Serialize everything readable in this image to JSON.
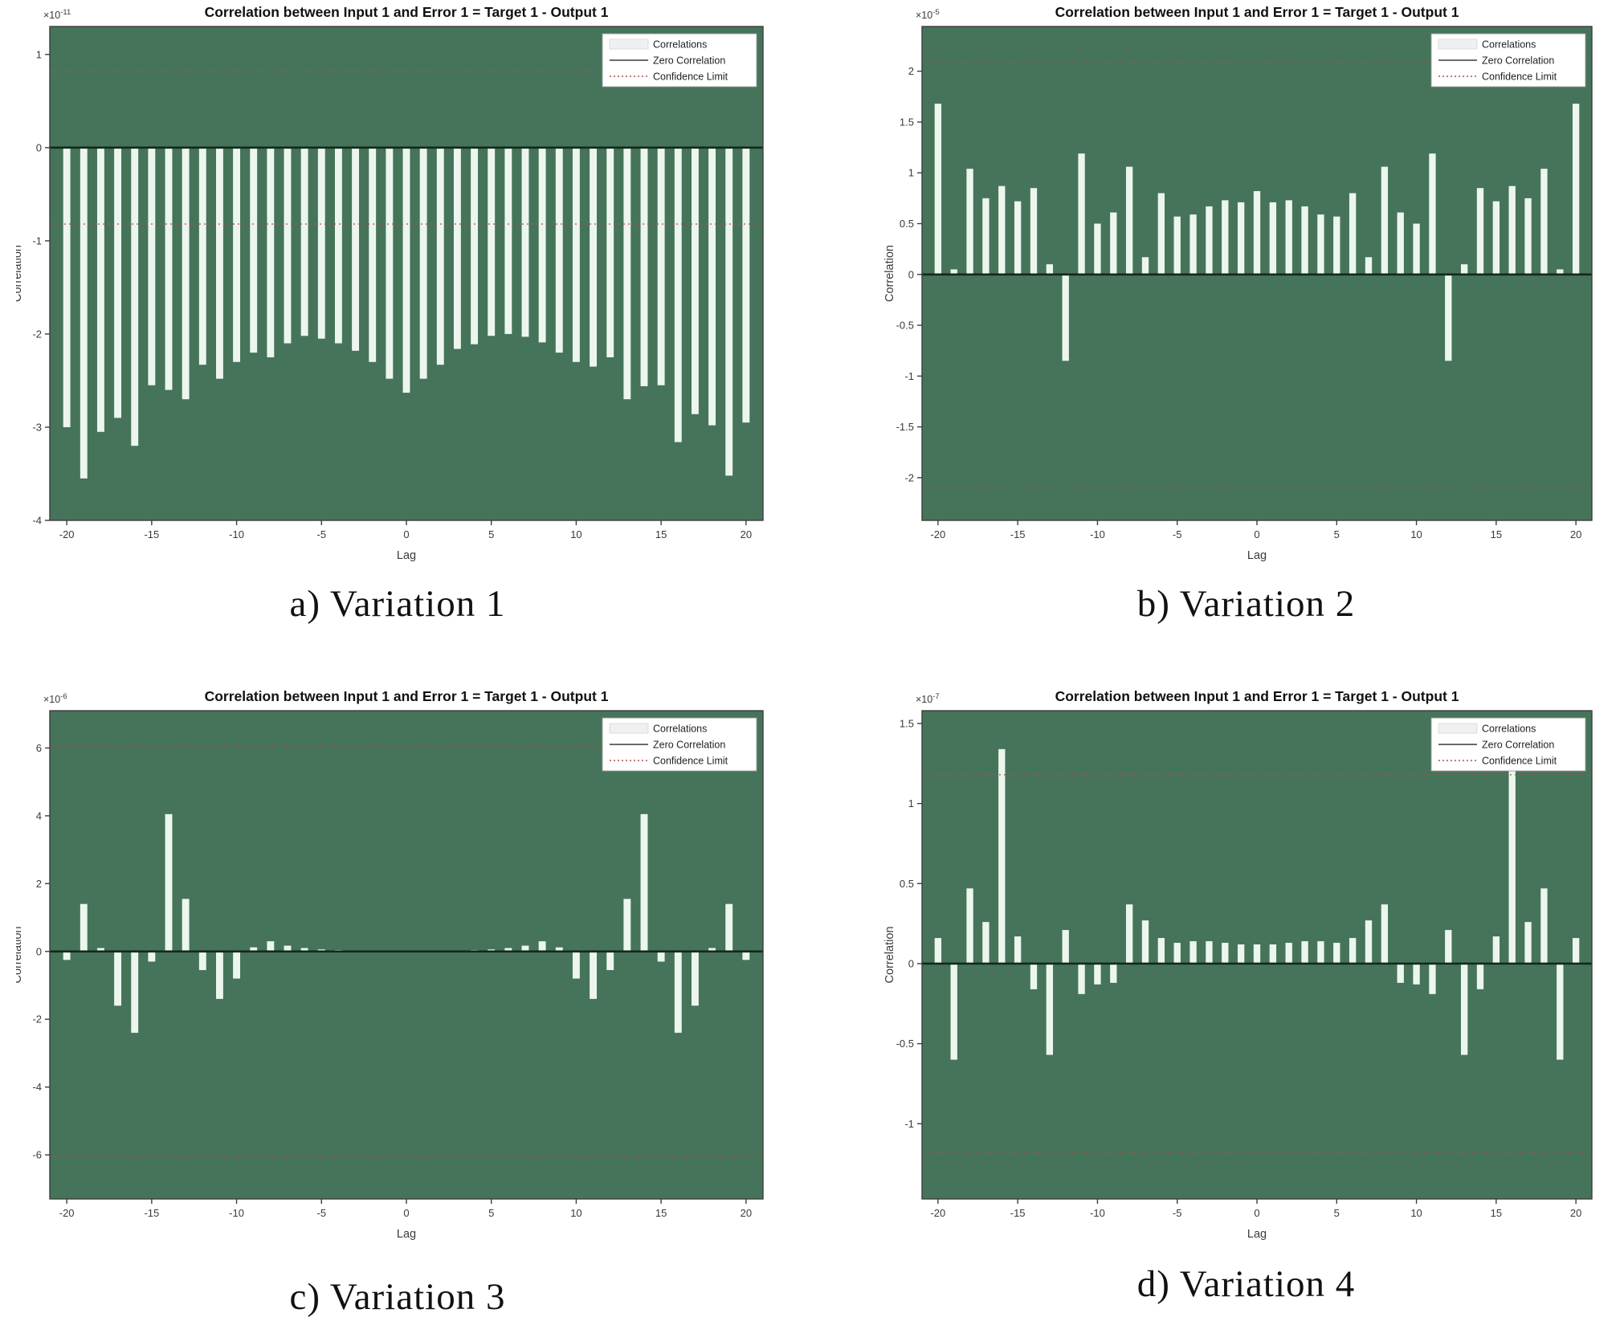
{
  "figures": [
    {
      "caption": "a) Variation 1"
    },
    {
      "caption": "b) Variation 2"
    },
    {
      "caption": "c) Variation 3"
    },
    {
      "caption": "d) Variation 4"
    }
  ],
  "colors": {
    "plot_background": "#45745a",
    "bar_fill": "#ecf6ef",
    "zero_line": "#14281c",
    "confidence_line": "#a8544b",
    "axis_box": "#3d3d3d",
    "tick_text": "#3a3a3a",
    "title_text": "#111111",
    "legend_bg": "#ffffff",
    "legend_border": "#999999",
    "legend_bar_swatch": "#f0f0f0",
    "legend_bar_swatch_border": "#d5d5d5",
    "page_background": "#ffffff"
  },
  "chart_data": [
    {
      "type": "bar",
      "title": "Correlation between Input 1 and Error 1 = Target 1 - Output 1",
      "xlabel": "Lag",
      "ylabel": "Correlation",
      "exponent_base": "×10",
      "exponent": "-11",
      "legend": [
        "Correlations",
        "Zero Correlation",
        "Confidence Limit"
      ],
      "legend_position": "top-right",
      "grid": false,
      "x": [
        -20,
        -19,
        -18,
        -17,
        -16,
        -15,
        -14,
        -13,
        -12,
        -11,
        -10,
        -9,
        -8,
        -7,
        -6,
        -5,
        -4,
        -3,
        -2,
        -1,
        0,
        1,
        2,
        3,
        4,
        5,
        6,
        7,
        8,
        9,
        10,
        11,
        12,
        13,
        14,
        15,
        16,
        17,
        18,
        19,
        20
      ],
      "values": [
        -3.0,
        -3.55,
        -3.05,
        -2.9,
        -3.2,
        -2.55,
        -2.6,
        -2.7,
        -2.33,
        -2.48,
        -2.3,
        -2.2,
        -2.25,
        -2.1,
        -2.02,
        -2.05,
        -2.1,
        -2.18,
        -2.3,
        -2.48,
        -2.63,
        -2.48,
        -2.33,
        -2.16,
        -2.11,
        -2.02,
        -2.0,
        -2.03,
        -2.09,
        -2.2,
        -2.3,
        -2.35,
        -2.25,
        -2.7,
        -2.56,
        -2.55,
        -3.16,
        -2.86,
        -2.98,
        -3.52,
        -2.95
      ],
      "confidence_limit": 0.82,
      "ylim": [
        -4.0,
        1.3
      ],
      "xlim": [
        -21,
        21
      ],
      "yticks": [
        1,
        0,
        -1,
        -2,
        -3,
        -4
      ],
      "xticks": [
        -20,
        -15,
        -10,
        -5,
        0,
        5,
        10,
        15,
        20
      ]
    },
    {
      "type": "bar",
      "title": "Correlation between Input 1 and Error 1 = Target 1 - Output 1",
      "xlabel": "Lag",
      "ylabel": "Correlation",
      "exponent_base": "×10",
      "exponent": "-5",
      "legend": [
        "Correlations",
        "Zero Correlation",
        "Confidence Limit"
      ],
      "legend_position": "top-right",
      "grid": false,
      "x": [
        -20,
        -19,
        -18,
        -17,
        -16,
        -15,
        -14,
        -13,
        -12,
        -11,
        -10,
        -9,
        -8,
        -7,
        -6,
        -5,
        -4,
        -3,
        -2,
        -1,
        0,
        1,
        2,
        3,
        4,
        5,
        6,
        7,
        8,
        9,
        10,
        11,
        12,
        13,
        14,
        15,
        16,
        17,
        18,
        19,
        20
      ],
      "values": [
        1.68,
        0.05,
        1.04,
        0.75,
        0.87,
        0.72,
        0.85,
        0.1,
        -0.85,
        1.19,
        0.5,
        0.61,
        1.06,
        0.17,
        0.8,
        0.57,
        0.59,
        0.67,
        0.73,
        0.71,
        0.82,
        0.71,
        0.73,
        0.67,
        0.59,
        0.57,
        0.8,
        0.17,
        1.06,
        0.61,
        0.5,
        1.19,
        -0.85,
        0.1,
        0.85,
        0.72,
        0.87,
        0.75,
        1.04,
        0.05,
        1.68
      ],
      "confidence_limit": 2.08,
      "ylim": [
        -2.42,
        2.44
      ],
      "xlim": [
        -21,
        21
      ],
      "yticks": [
        2,
        1.5,
        1,
        0.5,
        0,
        -0.5,
        -1,
        -1.5,
        -2
      ],
      "xticks": [
        -20,
        -15,
        -10,
        -5,
        0,
        5,
        10,
        15,
        20
      ]
    },
    {
      "type": "bar",
      "title": "Correlation between Input 1 and Error 1 = Target 1 - Output 1",
      "xlabel": "Lag",
      "ylabel": "Correlation",
      "exponent_base": "×10",
      "exponent": "-6",
      "legend": [
        "Correlations",
        "Zero Correlation",
        "Confidence Limit"
      ],
      "legend_position": "top-right",
      "grid": false,
      "x": [
        -20,
        -19,
        -18,
        -17,
        -16,
        -15,
        -14,
        -13,
        -12,
        -11,
        -10,
        -9,
        -8,
        -7,
        -6,
        -5,
        -4,
        -3,
        -2,
        -1,
        0,
        1,
        2,
        3,
        4,
        5,
        6,
        7,
        8,
        9,
        10,
        11,
        12,
        13,
        14,
        15,
        16,
        17,
        18,
        19,
        20
      ],
      "values": [
        -0.25,
        1.4,
        0.1,
        -1.6,
        -2.4,
        -0.3,
        4.05,
        1.55,
        -0.55,
        -1.4,
        -0.8,
        0.12,
        0.3,
        0.17,
        0.1,
        0.06,
        0.04,
        0.02,
        0.02,
        0.01,
        0.01,
        0.01,
        0.02,
        0.02,
        0.04,
        0.06,
        0.1,
        0.17,
        0.3,
        0.12,
        -0.8,
        -1.4,
        -0.55,
        1.55,
        4.05,
        -0.3,
        -2.4,
        -1.6,
        0.1,
        1.4,
        -0.25
      ],
      "confidence_limit": 6.05,
      "ylim": [
        -7.3,
        7.1
      ],
      "xlim": [
        -21,
        21
      ],
      "yticks": [
        6,
        4,
        2,
        0,
        -2,
        -4,
        -6
      ],
      "xticks": [
        -20,
        -15,
        -10,
        -5,
        0,
        5,
        10,
        15,
        20
      ]
    },
    {
      "type": "bar",
      "title": "Correlation between Input 1 and Error 1 = Target 1 - Output 1",
      "xlabel": "Lag",
      "ylabel": "Correlation",
      "exponent_base": "×10",
      "exponent": "-7",
      "legend": [
        "Correlations",
        "Zero Correlation",
        "Confidence Limit"
      ],
      "legend_position": "top-right",
      "grid": false,
      "x": [
        -20,
        -19,
        -18,
        -17,
        -16,
        -15,
        -14,
        -13,
        -12,
        -11,
        -10,
        -9,
        -8,
        -7,
        -6,
        -5,
        -4,
        -3,
        -2,
        -1,
        0,
        1,
        2,
        3,
        4,
        5,
        6,
        7,
        8,
        9,
        10,
        11,
        12,
        13,
        14,
        15,
        16,
        17,
        18,
        19,
        20
      ],
      "values": [
        0.16,
        -0.6,
        0.47,
        0.26,
        1.34,
        0.17,
        -0.16,
        -0.57,
        0.21,
        -0.19,
        -0.13,
        -0.12,
        0.37,
        0.27,
        0.16,
        0.13,
        0.14,
        0.14,
        0.13,
        0.12,
        0.12,
        0.12,
        0.13,
        0.14,
        0.14,
        0.13,
        0.16,
        0.27,
        0.37,
        -0.12,
        -0.13,
        -0.19,
        0.21,
        -0.57,
        -0.16,
        0.17,
        1.34,
        0.26,
        0.47,
        -0.6,
        0.16
      ],
      "confidence_limit": 1.18,
      "ylim": [
        -1.47,
        1.58
      ],
      "xlim": [
        -21,
        21
      ],
      "yticks": [
        1.5,
        1,
        0.5,
        0,
        -0.5,
        -1
      ],
      "xticks": [
        -20,
        -15,
        -10,
        -5,
        0,
        5,
        10,
        15,
        20
      ]
    }
  ]
}
